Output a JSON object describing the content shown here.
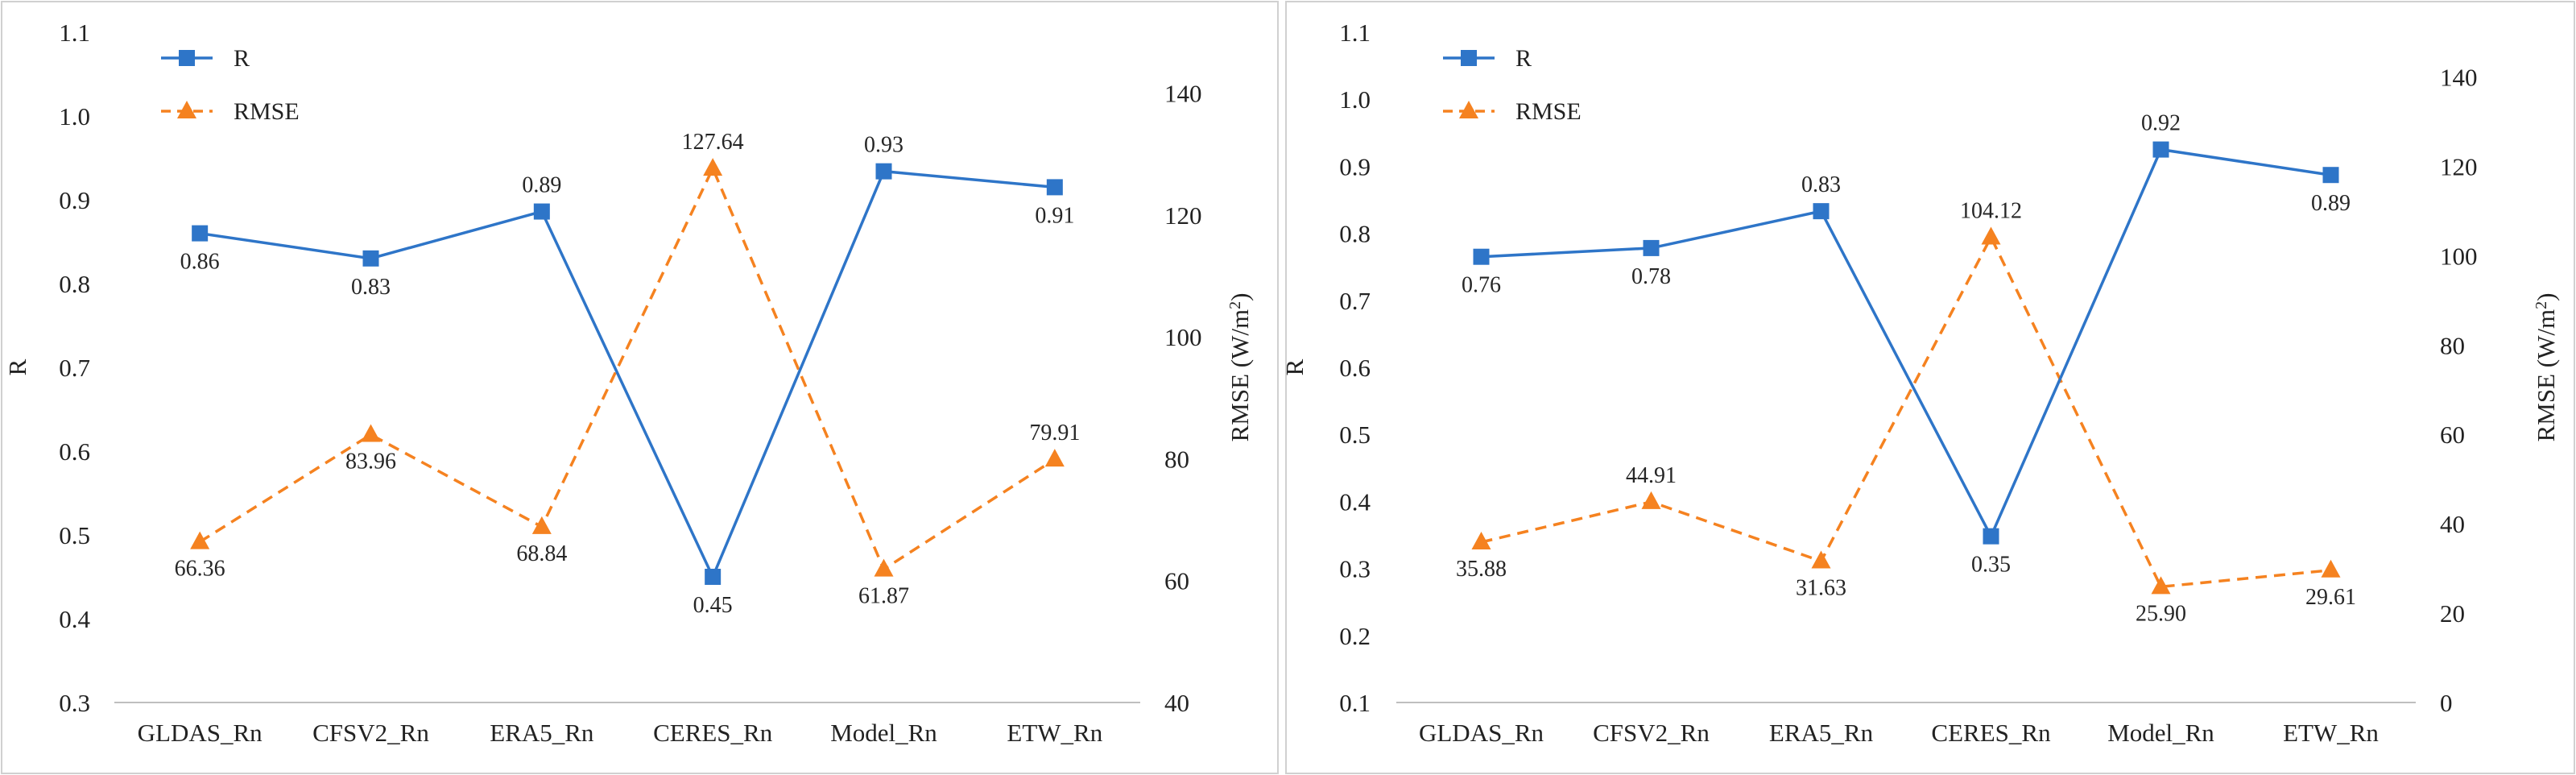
{
  "colors": {
    "r": "#2E75C8",
    "rmse": "#F58220",
    "axis": "#bfbfbf",
    "text": "#222222"
  },
  "chart_data": [
    {
      "type": "line",
      "title": "",
      "categories": [
        "GLDAS_Rn",
        "CFSV2_Rn",
        "ERA5_Rn",
        "CERES_Rn",
        "Model_Rn",
        "ETW_Rn"
      ],
      "ylabel": "R",
      "y2label_main": "RMSE (W/m",
      "y2label_sup": "2",
      "y2label_end": ")",
      "ylim": [
        0.3,
        1.1
      ],
      "yticks": [
        "0.3",
        "0.4",
        "0.5",
        "0.6",
        "0.7",
        "0.8",
        "0.9",
        "1.0",
        "1.1"
      ],
      "y2lim": [
        40,
        150
      ],
      "y2ticks": [
        "40",
        "60",
        "80",
        "100",
        "120",
        "140"
      ],
      "series": [
        {
          "name": "R",
          "axis": "left",
          "style": "solid",
          "marker": "square",
          "values": [
            0.86,
            0.83,
            0.886,
            0.45,
            0.934,
            0.915
          ],
          "labels": [
            "0.86",
            "0.83",
            "0.89",
            "0.45",
            "0.93",
            "0.91"
          ],
          "label_pos": [
            "below",
            "below",
            "above",
            "below",
            "above",
            "below"
          ]
        },
        {
          "name": "RMSE",
          "axis": "right",
          "style": "dashed",
          "marker": "triangle",
          "values": [
            66.36,
            83.96,
            68.84,
            127.64,
            61.87,
            79.91
          ],
          "labels": [
            "66.36",
            "83.96",
            "",
            "127.64",
            "",
            "79.91"
          ],
          "extra_labels": [
            {
              "index": 2,
              "text": "68.84",
              "pos": "below"
            },
            {
              "index": 4,
              "text": "61.87",
              "pos": "below"
            }
          ],
          "label_pos": [
            "below",
            "below",
            "below",
            "above",
            "below",
            "above"
          ]
        }
      ],
      "legend": [
        "R",
        "RMSE"
      ],
      "legend_position": "top-left"
    },
    {
      "type": "line",
      "title": "",
      "categories": [
        "GLDAS_Rn",
        "CFSV2_Rn",
        "ERA5_Rn",
        "CERES_Rn",
        "Model_Rn",
        "ETW_Rn"
      ],
      "ylabel": "R",
      "y2label_main": "RMSE (W/m",
      "y2label_sup": "2",
      "y2label_end": ")",
      "ylim": [
        0.1,
        1.1
      ],
      "yticks": [
        "0.1",
        "0.2",
        "0.3",
        "0.4",
        "0.5",
        "0.6",
        "0.7",
        "0.8",
        "0.9",
        "1.0",
        "1.1"
      ],
      "y2lim": [
        0,
        150
      ],
      "y2ticks": [
        "0",
        "20",
        "40",
        "60",
        "80",
        "100",
        "120",
        "140"
      ],
      "series": [
        {
          "name": "R",
          "axis": "left",
          "style": "solid",
          "marker": "square",
          "values": [
            0.765,
            0.778,
            0.833,
            0.348,
            0.925,
            0.887
          ],
          "labels": [
            "0.76",
            "0.78",
            "0.83",
            "0.35",
            "0.92",
            "0.89"
          ],
          "label_pos": [
            "below",
            "below",
            "above",
            "below",
            "above",
            "below"
          ]
        },
        {
          "name": "RMSE",
          "axis": "right",
          "style": "dashed",
          "marker": "triangle",
          "values": [
            35.88,
            44.91,
            31.63,
            104.12,
            25.9,
            29.61
          ],
          "labels": [
            "35.88",
            "44.91",
            "31.63",
            "104.12",
            "25.90",
            "29.61"
          ],
          "label_pos": [
            "below",
            "above",
            "below",
            "above",
            "below",
            "below"
          ]
        }
      ],
      "legend": [
        "R",
        "RMSE"
      ],
      "legend_position": "top-left"
    }
  ]
}
